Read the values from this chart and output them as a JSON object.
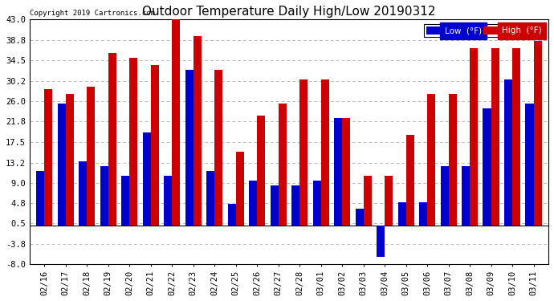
{
  "title": "Outdoor Temperature Daily High/Low 20190312",
  "copyright": "Copyright 2019 Cartronics.com",
  "legend_low": "Low  (°F)",
  "legend_high": "High  (°F)",
  "dates": [
    "02/16",
    "02/17",
    "02/18",
    "02/19",
    "02/20",
    "02/21",
    "02/22",
    "02/23",
    "02/24",
    "02/25",
    "02/26",
    "02/27",
    "02/28",
    "03/01",
    "03/02",
    "03/03",
    "03/04",
    "03/05",
    "03/06",
    "03/07",
    "03/08",
    "03/09",
    "03/10",
    "03/11"
  ],
  "lows": [
    11.5,
    25.5,
    13.5,
    12.5,
    10.5,
    19.5,
    10.5,
    32.5,
    11.5,
    4.5,
    9.5,
    8.5,
    8.5,
    9.5,
    22.5,
    3.5,
    -6.5,
    5.0,
    5.0,
    12.5,
    12.5,
    24.5,
    30.5,
    25.5
  ],
  "highs": [
    28.5,
    27.5,
    29.0,
    36.0,
    35.0,
    33.5,
    44.0,
    39.5,
    32.5,
    15.5,
    23.0,
    25.5,
    30.5,
    30.5,
    22.5,
    10.5,
    10.5,
    19.0,
    27.5,
    27.5,
    37.0,
    37.0,
    37.0,
    38.5
  ],
  "ylim": [
    -8.0,
    43.0
  ],
  "yticks": [
    -8.0,
    -3.8,
    0.5,
    4.8,
    9.0,
    13.2,
    17.5,
    21.8,
    26.0,
    30.2,
    34.5,
    38.8,
    43.0
  ],
  "ytick_labels": [
    "-8.0",
    "-3.8",
    "0.5",
    "4.8",
    "9.0",
    "13.2",
    "17.5",
    "21.8",
    "26.0",
    "30.2",
    "34.5",
    "38.8",
    "43.0"
  ],
  "low_color": "#0000cc",
  "high_color": "#cc0000",
  "bg_color": "#ffffff",
  "grid_color": "#bbbbbb",
  "title_fontsize": 11,
  "tick_fontsize": 7.5,
  "bar_width": 0.38
}
